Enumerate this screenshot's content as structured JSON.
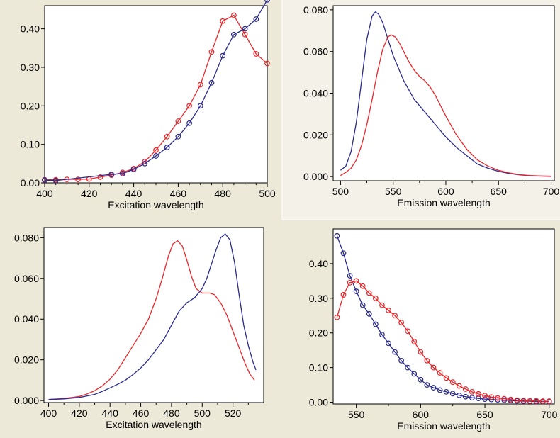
{
  "colors": {
    "series_red": "#e8262a",
    "series_blue": "#2a2a8c",
    "background": "#ece9d8",
    "plot_bg": "#ffffff"
  },
  "chart_data": [
    {
      "type": "line",
      "id": "excitation-top",
      "title": "",
      "xlabel": "Excitation wavelength",
      "ylabel": "",
      "xlim": [
        400,
        500
      ],
      "ylim": [
        0,
        0.46
      ],
      "xticks": [
        400,
        420,
        440,
        460,
        480,
        500
      ],
      "xminor": [
        405,
        410,
        415,
        425,
        430,
        435,
        445,
        450,
        455,
        465,
        470,
        475,
        485,
        490,
        495
      ],
      "yticks": [
        0,
        0.1,
        0.2,
        0.3,
        0.4
      ],
      "yticklabels": [
        "0.00",
        "0.10",
        "0.20",
        "0.30",
        "0.40"
      ],
      "grid": false,
      "legend": "none",
      "markers": true,
      "series": [
        {
          "color": "#e8262a",
          "x": [
            400,
            405,
            410,
            415,
            420,
            425,
            430,
            435,
            440,
            445,
            450,
            455,
            460,
            465,
            470,
            475,
            480,
            485,
            490,
            495,
            500
          ],
          "y": [
            0.008,
            0.008,
            0.009,
            0.009,
            0.01,
            0.015,
            0.02,
            0.027,
            0.037,
            0.055,
            0.085,
            0.12,
            0.16,
            0.2,
            0.255,
            0.34,
            0.42,
            0.435,
            0.385,
            0.335,
            0.31
          ]
        },
        {
          "color": "#2a2a8c",
          "x": [
            400,
            405,
            430,
            435,
            440,
            445,
            450,
            455,
            460,
            465,
            470,
            475,
            480,
            485,
            490,
            495,
            500
          ],
          "y": [
            0.007,
            0.006,
            0.022,
            0.024,
            0.035,
            0.05,
            0.07,
            0.092,
            0.12,
            0.155,
            0.2,
            0.26,
            0.33,
            0.385,
            0.4,
            0.425,
            0.475
          ]
        }
      ]
    },
    {
      "type": "line",
      "id": "emission-top",
      "title": "",
      "xlabel": "Emission wavelength",
      "ylabel": "",
      "xlim": [
        493,
        703
      ],
      "ylim": [
        -0.002,
        0.082
      ],
      "xticks": [
        500,
        550,
        600,
        650,
        700
      ],
      "xminor": [
        525,
        575,
        625,
        675
      ],
      "yticks": [
        0,
        0.02,
        0.04,
        0.06,
        0.08
      ],
      "yticklabels": [
        "0.000",
        "0.020",
        "0.040",
        "0.060",
        "0.080"
      ],
      "grid": false,
      "legend": "none",
      "markers": false,
      "series": [
        {
          "color": "#2a2a8c",
          "x": [
            500,
            505,
            510,
            515,
            520,
            525,
            530,
            533,
            536,
            540,
            545,
            550,
            560,
            570,
            580,
            590,
            600,
            610,
            620,
            630,
            640,
            650,
            660,
            670,
            680,
            690,
            700
          ],
          "y": [
            0.003,
            0.005,
            0.012,
            0.026,
            0.046,
            0.066,
            0.077,
            0.079,
            0.078,
            0.074,
            0.066,
            0.058,
            0.046,
            0.037,
            0.031,
            0.025,
            0.019,
            0.014,
            0.01,
            0.006,
            0.004,
            0.0025,
            0.0015,
            0.0008,
            0.0004,
            0.0002,
            0.0001
          ]
        },
        {
          "color": "#e8262a",
          "x": [
            500,
            505,
            510,
            515,
            520,
            525,
            530,
            535,
            540,
            545,
            548,
            552,
            556,
            560,
            565,
            570,
            575,
            580,
            585,
            590,
            595,
            600,
            610,
            620,
            630,
            640,
            650,
            660,
            670,
            680,
            690,
            700
          ],
          "y": [
            0.0005,
            0.002,
            0.004,
            0.008,
            0.015,
            0.025,
            0.037,
            0.05,
            0.061,
            0.067,
            0.068,
            0.067,
            0.064,
            0.06,
            0.055,
            0.051,
            0.048,
            0.046,
            0.043,
            0.039,
            0.034,
            0.029,
            0.02,
            0.013,
            0.008,
            0.005,
            0.003,
            0.0018,
            0.0009,
            0.0005,
            0.0003,
            0.0002
          ]
        }
      ]
    },
    {
      "type": "line",
      "id": "excitation-bottom",
      "title": "",
      "xlabel": "Excitation wavelength",
      "ylabel": "",
      "xlim": [
        397,
        540
      ],
      "ylim": [
        -0.001,
        0.085
      ],
      "xticks": [
        400,
        420,
        440,
        460,
        480,
        500,
        520
      ],
      "xminor": [
        410,
        430,
        450,
        470,
        490,
        510,
        530
      ],
      "yticks": [
        0,
        0.02,
        0.04,
        0.06,
        0.08
      ],
      "yticklabels": [
        "0.000",
        "0.020",
        "0.040",
        "0.060",
        "0.080"
      ],
      "grid": false,
      "legend": "none",
      "markers": false,
      "series": [
        {
          "color": "#e8262a",
          "x": [
            400,
            410,
            420,
            425,
            430,
            435,
            440,
            445,
            450,
            455,
            460,
            465,
            470,
            474,
            478,
            481,
            484,
            487,
            490,
            493,
            496,
            500,
            505,
            508,
            512,
            516,
            520,
            524,
            528,
            531,
            534
          ],
          "y": [
            0.0005,
            0.001,
            0.002,
            0.0032,
            0.0048,
            0.0072,
            0.0105,
            0.015,
            0.021,
            0.027,
            0.033,
            0.04,
            0.05,
            0.06,
            0.071,
            0.077,
            0.0785,
            0.076,
            0.069,
            0.061,
            0.055,
            0.0528,
            0.0528,
            0.052,
            0.048,
            0.042,
            0.034,
            0.026,
            0.018,
            0.013,
            0.01
          ]
        },
        {
          "color": "#2a2a8c",
          "x": [
            400,
            410,
            420,
            430,
            435,
            440,
            445,
            450,
            455,
            460,
            465,
            470,
            475,
            480,
            485,
            490,
            495,
            500,
            503,
            506,
            509,
            512,
            515,
            518,
            521,
            524,
            527,
            530,
            533,
            535
          ],
          "y": [
            0.0005,
            0.0008,
            0.0015,
            0.003,
            0.0045,
            0.0062,
            0.008,
            0.01,
            0.0128,
            0.016,
            0.02,
            0.025,
            0.03,
            0.037,
            0.044,
            0.048,
            0.0505,
            0.055,
            0.06,
            0.067,
            0.074,
            0.08,
            0.0818,
            0.079,
            0.068,
            0.052,
            0.037,
            0.027,
            0.019,
            0.015
          ]
        }
      ]
    },
    {
      "type": "line",
      "id": "emission-bottom",
      "title": "",
      "xlabel": "Emission wavelength",
      "ylabel": "",
      "xlim": [
        532,
        704
      ],
      "ylim": [
        -0.005,
        0.5
      ],
      "xticks": [
        550,
        600,
        650,
        700
      ],
      "xminor": [
        575,
        625,
        675
      ],
      "yticks": [
        0,
        0.1,
        0.2,
        0.3,
        0.4
      ],
      "yticklabels": [
        "0.00",
        "0.10",
        "0.20",
        "0.30",
        "0.40"
      ],
      "grid": false,
      "legend": "none",
      "markers": true,
      "series": [
        {
          "color": "#2a2a8c",
          "x": [
            535,
            540,
            545,
            550,
            555,
            560,
            565,
            570,
            575,
            580,
            585,
            590,
            595,
            600,
            605,
            610,
            615,
            620,
            625,
            630,
            635,
            640,
            645,
            650,
            655,
            660,
            665,
            670,
            675,
            680,
            685,
            690,
            695,
            700
          ],
          "y": [
            0.48,
            0.43,
            0.365,
            0.32,
            0.28,
            0.255,
            0.225,
            0.195,
            0.17,
            0.145,
            0.12,
            0.1,
            0.082,
            0.065,
            0.05,
            0.042,
            0.035,
            0.03,
            0.025,
            0.02,
            0.016,
            0.013,
            0.011,
            0.009,
            0.008,
            0.007,
            0.006,
            0.005,
            0.004,
            0.003,
            0.003,
            0.002,
            0.002,
            0.002
          ]
        },
        {
          "color": "#e8262a",
          "x": [
            535,
            540,
            545,
            550,
            555,
            560,
            565,
            570,
            575,
            580,
            585,
            590,
            595,
            600,
            605,
            610,
            615,
            620,
            625,
            630,
            635,
            640,
            645,
            650,
            655,
            660,
            665,
            670,
            675,
            680,
            685,
            690,
            695,
            700
          ],
          "y": [
            0.245,
            0.31,
            0.345,
            0.35,
            0.335,
            0.315,
            0.3,
            0.28,
            0.265,
            0.25,
            0.23,
            0.205,
            0.175,
            0.145,
            0.12,
            0.1,
            0.085,
            0.07,
            0.058,
            0.047,
            0.038,
            0.03,
            0.024,
            0.019,
            0.015,
            0.012,
            0.01,
            0.008,
            0.006,
            0.005,
            0.004,
            0.004,
            0.003,
            0.003
          ]
        }
      ]
    }
  ]
}
